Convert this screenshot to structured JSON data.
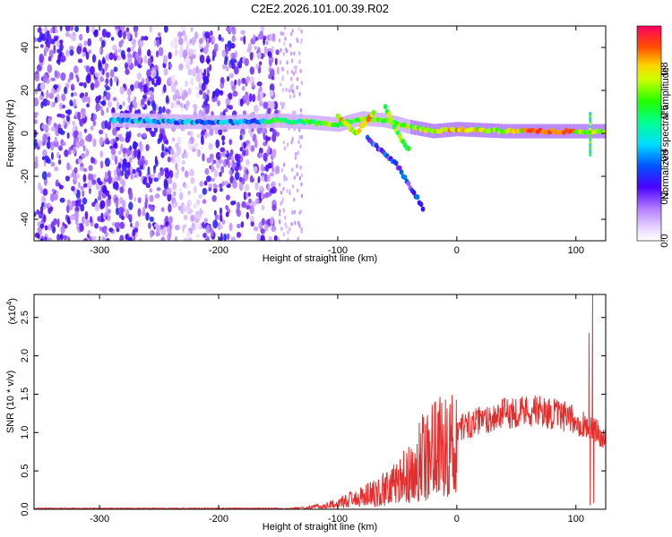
{
  "title": "C2E2.2026.101.00.39.R02",
  "chart_data": [
    {
      "type": "heatmap",
      "xlabel": "Height of straight line (km)",
      "ylabel": "Frequency (Hz)",
      "xlim": [
        -355,
        125
      ],
      "ylim": [
        -50,
        50
      ],
      "x_ticks": [
        -300,
        -200,
        -100,
        0,
        100
      ],
      "y_ticks": [
        -40,
        -20,
        0,
        20,
        40
      ],
      "colorbar": {
        "label": "Normalized spectral amplitude",
        "range": [
          0.0,
          1.0
        ],
        "ticks": [
          0.0,
          0.2,
          0.4,
          0.6,
          0.8
        ],
        "tick_labels": [
          "0.0",
          "0.2",
          "0.4",
          "0.6",
          "0.8"
        ]
      },
      "ridge": [
        {
          "x": -270,
          "y": 6
        },
        {
          "x": -200,
          "y": 5
        },
        {
          "x": -150,
          "y": 6
        },
        {
          "x": -120,
          "y": 5
        },
        {
          "x": -100,
          "y": 4
        },
        {
          "x": -80,
          "y": 7
        },
        {
          "x": -60,
          "y": 6
        },
        {
          "x": -40,
          "y": 3
        },
        {
          "x": -20,
          "y": 1
        },
        {
          "x": 0,
          "y": 2
        },
        {
          "x": 40,
          "y": 1
        },
        {
          "x": 80,
          "y": 1
        },
        {
          "x": 125,
          "y": 1
        }
      ],
      "branches": [
        {
          "points": [
            {
              "x": -100,
              "y": 8
            },
            {
              "x": -85,
              "y": 0
            },
            {
              "x": -70,
              "y": 10
            }
          ],
          "amplitude": 0.8
        },
        {
          "points": [
            {
              "x": -60,
              "y": 12
            },
            {
              "x": -50,
              "y": 0
            },
            {
              "x": -40,
              "y": -8
            }
          ],
          "amplitude": 0.7
        },
        {
          "points": [
            {
              "x": -75,
              "y": -2
            },
            {
              "x": -50,
              "y": -15
            },
            {
              "x": -28,
              "y": -35
            }
          ],
          "amplitude": 0.3
        }
      ]
    },
    {
      "type": "line",
      "xlabel": "Height of straight line (km)",
      "ylabel": "SNR (10 * v/v)",
      "multiplier": "(x10",
      "multiplier_exp": "4",
      "multiplier_close": ")",
      "xlim": [
        -355,
        125
      ],
      "ylim": [
        0,
        2.8
      ],
      "x_ticks": [
        -300,
        -200,
        -100,
        0,
        100
      ],
      "y_ticks": [
        0.0,
        0.5,
        1.0,
        1.5,
        2.0,
        2.5
      ],
      "y_tick_labels": [
        "0.0",
        "0.5",
        "1.0",
        "1.5",
        "2.0",
        "2.5"
      ],
      "series": [
        {
          "name": "SNR",
          "color": "#e32e2e",
          "envelope": [
            {
              "x": -355,
              "y": 0.01
            },
            {
              "x": -150,
              "y": 0.01
            },
            {
              "x": -130,
              "y": 0.03
            },
            {
              "x": -110,
              "y": 0.08
            },
            {
              "x": -95,
              "y": 0.18
            },
            {
              "x": -80,
              "y": 0.25
            },
            {
              "x": -65,
              "y": 0.35
            },
            {
              "x": -50,
              "y": 0.55
            },
            {
              "x": -40,
              "y": 0.7
            },
            {
              "x": -30,
              "y": 0.9
            },
            {
              "x": -20,
              "y": 1.0
            },
            {
              "x": -10,
              "y": 1.05
            },
            {
              "x": 0,
              "y": 1.1
            },
            {
              "x": 20,
              "y": 1.2
            },
            {
              "x": 40,
              "y": 1.3
            },
            {
              "x": 60,
              "y": 1.35
            },
            {
              "x": 80,
              "y": 1.3
            },
            {
              "x": 100,
              "y": 1.2
            },
            {
              "x": 108,
              "y": 1.15
            },
            {
              "x": 112,
              "y": 1.1
            },
            {
              "x": 118,
              "y": 1.05
            },
            {
              "x": 125,
              "y": 0.95
            }
          ],
          "spikes": [
            {
              "x": 111,
              "y": 2.3
            },
            {
              "x": 112,
              "y": 0.05
            },
            {
              "x": 114,
              "y": 2.8
            },
            {
              "x": 115,
              "y": 0.08
            }
          ]
        }
      ]
    }
  ]
}
